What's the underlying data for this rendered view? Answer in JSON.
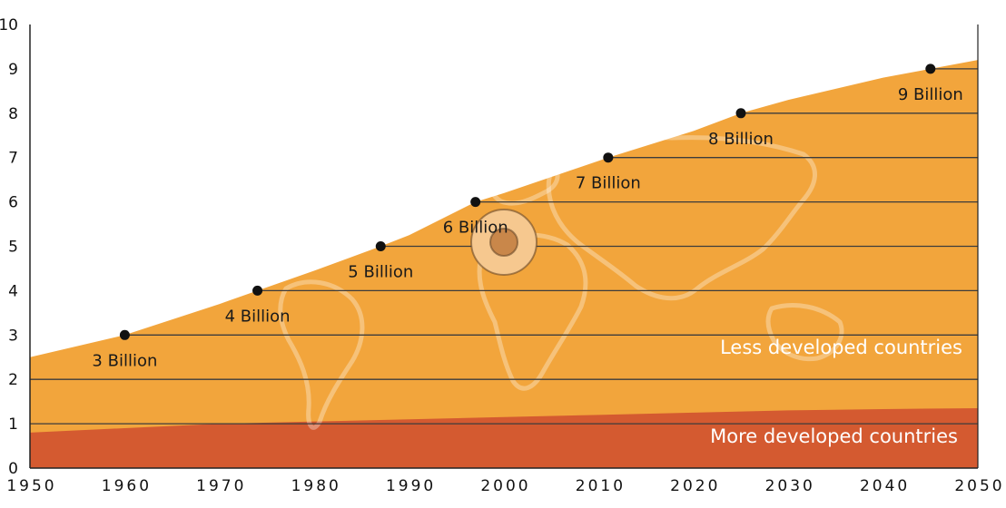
{
  "chart_data": {
    "type": "area",
    "xlim": [
      1950,
      2050
    ],
    "ylim": [
      0,
      10
    ],
    "grid": true,
    "x_ticks": [
      "1950",
      "1960",
      "1970",
      "1980",
      "1990",
      "2000",
      "2010",
      "2020",
      "2030",
      "2040",
      "2050"
    ],
    "y_ticks": [
      "0",
      "1",
      "2",
      "3",
      "4",
      "5",
      "6",
      "7",
      "8",
      "9",
      "10"
    ],
    "series": [
      {
        "name": "More developed countries",
        "color": "#d45a30",
        "points": [
          [
            1950,
            0.8
          ],
          [
            1960,
            0.9
          ],
          [
            1970,
            1.0
          ],
          [
            1980,
            1.05
          ],
          [
            1990,
            1.1
          ],
          [
            2000,
            1.15
          ],
          [
            2010,
            1.2
          ],
          [
            2020,
            1.25
          ],
          [
            2030,
            1.3
          ],
          [
            2040,
            1.33
          ],
          [
            2050,
            1.35
          ]
        ]
      },
      {
        "name": "Less developed countries",
        "color": "#f2a53c",
        "total_points": [
          [
            1950,
            2.5
          ],
          [
            1960,
            3.0
          ],
          [
            1970,
            3.7
          ],
          [
            1974,
            4.0
          ],
          [
            1980,
            4.45
          ],
          [
            1987,
            5.0
          ],
          [
            1990,
            5.25
          ],
          [
            1997,
            6.0
          ],
          [
            2000,
            6.2
          ],
          [
            2011,
            7.0
          ],
          [
            2020,
            7.6
          ],
          [
            2025,
            8.0
          ],
          [
            2030,
            8.3
          ],
          [
            2040,
            8.8
          ],
          [
            2045,
            9.0
          ],
          [
            2050,
            9.2
          ]
        ]
      }
    ],
    "milestones": [
      {
        "x": 1960,
        "y": 3,
        "label": "3 Billion"
      },
      {
        "x": 1974,
        "y": 4,
        "label": "4 Billion"
      },
      {
        "x": 1987,
        "y": 5,
        "label": "5 Billion"
      },
      {
        "x": 1997,
        "y": 6,
        "label": "6 Billion"
      },
      {
        "x": 2011,
        "y": 7,
        "label": "7 Billion"
      },
      {
        "x": 2025,
        "y": 8,
        "label": "8 Billion"
      },
      {
        "x": 2045,
        "y": 9,
        "label": "9 Billion"
      }
    ],
    "region_labels": {
      "less": "Less developed countries",
      "more": "More developed countries"
    }
  }
}
